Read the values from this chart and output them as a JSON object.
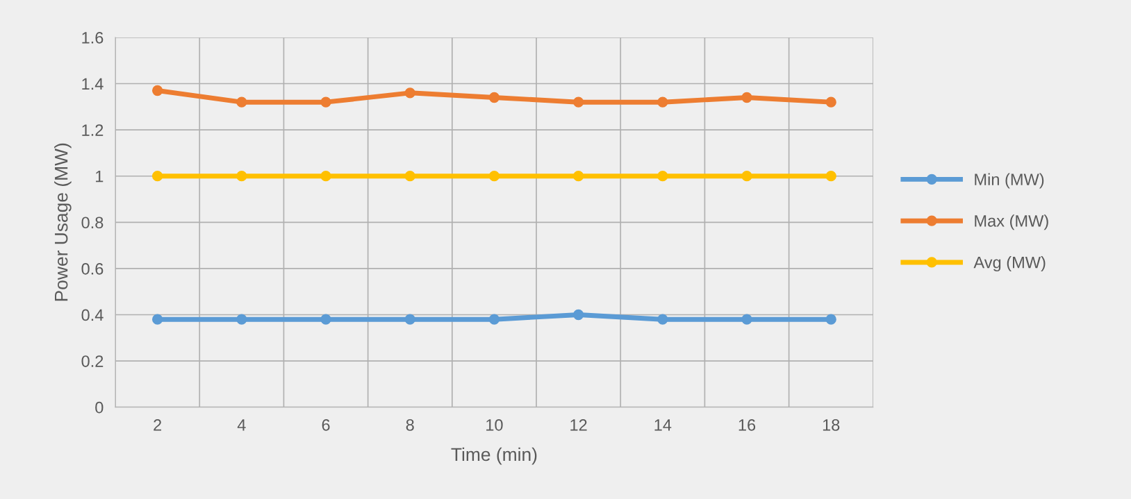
{
  "chart_data": {
    "type": "line",
    "xlabel": "Time (min)",
    "ylabel": "Power Usage (MW)",
    "categories": [
      "2",
      "4",
      "6",
      "8",
      "10",
      "12",
      "14",
      "16",
      "18"
    ],
    "series": [
      {
        "name": "Min (MW)",
        "color": "#5b9bd5",
        "values": [
          0.38,
          0.38,
          0.38,
          0.38,
          0.38,
          0.4,
          0.38,
          0.38,
          0.38
        ]
      },
      {
        "name": "Max (MW)",
        "color": "#ed7d31",
        "values": [
          1.37,
          1.32,
          1.32,
          1.36,
          1.34,
          1.32,
          1.32,
          1.34,
          1.32
        ]
      },
      {
        "name": "Avg (MW)",
        "color": "#ffc000",
        "values": [
          1.0,
          1.0,
          1.0,
          1.0,
          1.0,
          1.0,
          1.0,
          1.0,
          1.0
        ]
      }
    ],
    "ylim": [
      0,
      1.6
    ],
    "yticks": [
      0,
      0.2,
      0.4,
      0.6,
      0.8,
      1,
      1.2,
      1.4,
      1.6
    ],
    "grid": true,
    "legend": "right",
    "marker": "circle",
    "line_style": "solid"
  }
}
